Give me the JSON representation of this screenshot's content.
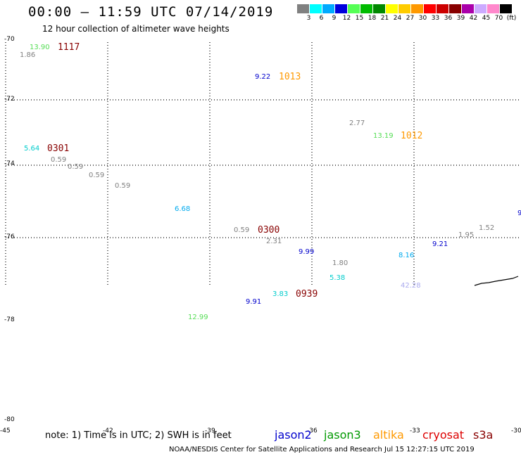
{
  "header": {
    "title": "00:00 – 11:59 UTC 07/14/2019",
    "subtitle": "12 hour collection of altimeter wave heights"
  },
  "colorbar": {
    "swatches": [
      {
        "color": "#808080",
        "label": "3"
      },
      {
        "color": "#00ffff",
        "label": "6"
      },
      {
        "color": "#00aaff",
        "label": "9"
      },
      {
        "color": "#0000dd",
        "label": "12"
      },
      {
        "color": "#55ff55",
        "label": "15"
      },
      {
        "color": "#00bb00",
        "label": "18"
      },
      {
        "color": "#008800",
        "label": "21"
      },
      {
        "color": "#ffff00",
        "label": "24"
      },
      {
        "color": "#ffcc00",
        "label": "27"
      },
      {
        "color": "#ff9900",
        "label": "30"
      },
      {
        "color": "#ff0000",
        "label": "33"
      },
      {
        "color": "#cc0000",
        "label": "36"
      },
      {
        "color": "#880000",
        "label": "39"
      },
      {
        "color": "#aa00aa",
        "label": "42"
      },
      {
        "color": "#ccaaff",
        "label": "45"
      },
      {
        "color": "#ff88cc",
        "label": "70"
      },
      {
        "color": "#000000",
        "label": "(ft)"
      }
    ]
  },
  "axes": {
    "lat_labels": [
      "-70",
      "-72",
      "-74",
      "-76",
      "-78",
      "-80"
    ],
    "lon_labels": [
      "-45",
      "-42",
      "-39",
      "-36",
      "-33",
      "-30"
    ]
  },
  "observations": [
    {
      "text": "13.90",
      "color": "#55dd55"
    },
    {
      "text": "1.86",
      "color": "#808080"
    },
    {
      "text": "9.22",
      "color": "#0000cc"
    },
    {
      "text": "2.77",
      "color": "#808080"
    },
    {
      "text": "13.19",
      "color": "#55dd55"
    },
    {
      "text": "5.64",
      "color": "#00cccc"
    },
    {
      "text": "0.59",
      "color": "#808080"
    },
    {
      "text": "0.59",
      "color": "#808080"
    },
    {
      "text": "0.59",
      "color": "#808080"
    },
    {
      "text": "0.59",
      "color": "#808080"
    },
    {
      "text": "6.68",
      "color": "#00aaee"
    },
    {
      "text": "0.59",
      "color": "#808080"
    },
    {
      "text": "2.31",
      "color": "#808080"
    },
    {
      "text": "9.99",
      "color": "#0000cc"
    },
    {
      "text": "1.80",
      "color": "#808080"
    },
    {
      "text": "5.38",
      "color": "#00cccc"
    },
    {
      "text": "8.16",
      "color": "#00aaee"
    },
    {
      "text": "9.21",
      "color": "#0000cc"
    },
    {
      "text": "1.95",
      "color": "#808080"
    },
    {
      "text": "1.52",
      "color": "#808080"
    },
    {
      "text": "42.28",
      "color": "#aaaaee"
    },
    {
      "text": "3.83",
      "color": "#00cccc"
    },
    {
      "text": "9.91",
      "color": "#0000cc"
    },
    {
      "text": "12.99",
      "color": "#55dd55"
    },
    {
      "text": "9",
      "color": "#0000cc"
    }
  ],
  "passes": [
    {
      "text": "1117",
      "color": "#880000"
    },
    {
      "text": "1013",
      "color": "#ff9900"
    },
    {
      "text": "1012",
      "color": "#ff9900"
    },
    {
      "text": "0301",
      "color": "#880000"
    },
    {
      "text": "0300",
      "color": "#880000"
    },
    {
      "text": "0939",
      "color": "#880000"
    }
  ],
  "legend": {
    "note": "note: 1) Time is in UTC; 2) SWH is in feet",
    "satellites": [
      {
        "name": "jason2",
        "color": "#0000cc"
      },
      {
        "name": "jason3",
        "color": "#009900"
      },
      {
        "name": "altika",
        "color": "#ff9900"
      },
      {
        "name": "cryosat",
        "color": "#dd0000"
      },
      {
        "name": "s3a",
        "color": "#880000"
      }
    ]
  },
  "footer": "NOAA/NESDIS Center for Satellite Applications and Research    Jul 15 12:27:15 UTC 2019"
}
